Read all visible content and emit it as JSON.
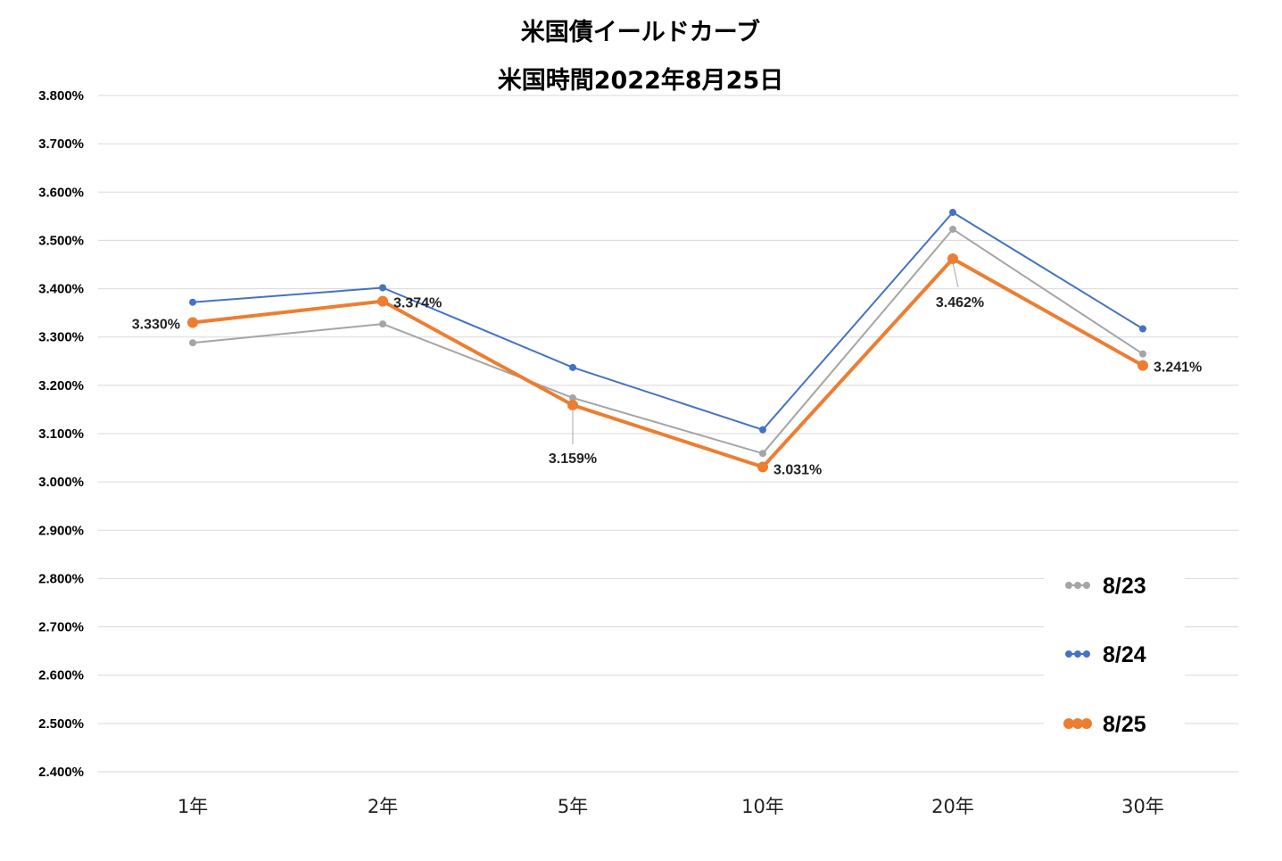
{
  "chart_data": {
    "type": "line",
    "title": "米国債イールドカーブ",
    "subtitle": "米国時間2022年8月25日",
    "categories": [
      "1年",
      "2年",
      "5年",
      "10年",
      "20年",
      "30年"
    ],
    "ylim": [
      2.4,
      3.8
    ],
    "ytick_step": 0.1,
    "ytick_labels": [
      "3.800%",
      "3.700%",
      "3.600%",
      "3.500%",
      "3.400%",
      "3.300%",
      "3.200%",
      "3.100%",
      "3.000%",
      "2.900%",
      "2.800%",
      "2.700%",
      "2.600%",
      "2.500%",
      "2.400%"
    ],
    "grid": true,
    "legend_position": "bottom-right",
    "series": [
      {
        "name": "8/23",
        "color": "#a5a5a5",
        "values": [
          3.288,
          3.327,
          3.174,
          3.059,
          3.523,
          3.265
        ]
      },
      {
        "name": "8/24",
        "color": "#4472c4",
        "values": [
          3.372,
          3.402,
          3.237,
          3.108,
          3.558,
          3.317
        ]
      },
      {
        "name": "8/25",
        "color": "#ed7d31",
        "values": [
          3.33,
          3.374,
          3.159,
          3.031,
          3.462,
          3.241
        ]
      }
    ],
    "data_labels": [
      "3.330%",
      "3.374%",
      "3.159%",
      "3.031%",
      "3.462%",
      "3.241%"
    ]
  }
}
